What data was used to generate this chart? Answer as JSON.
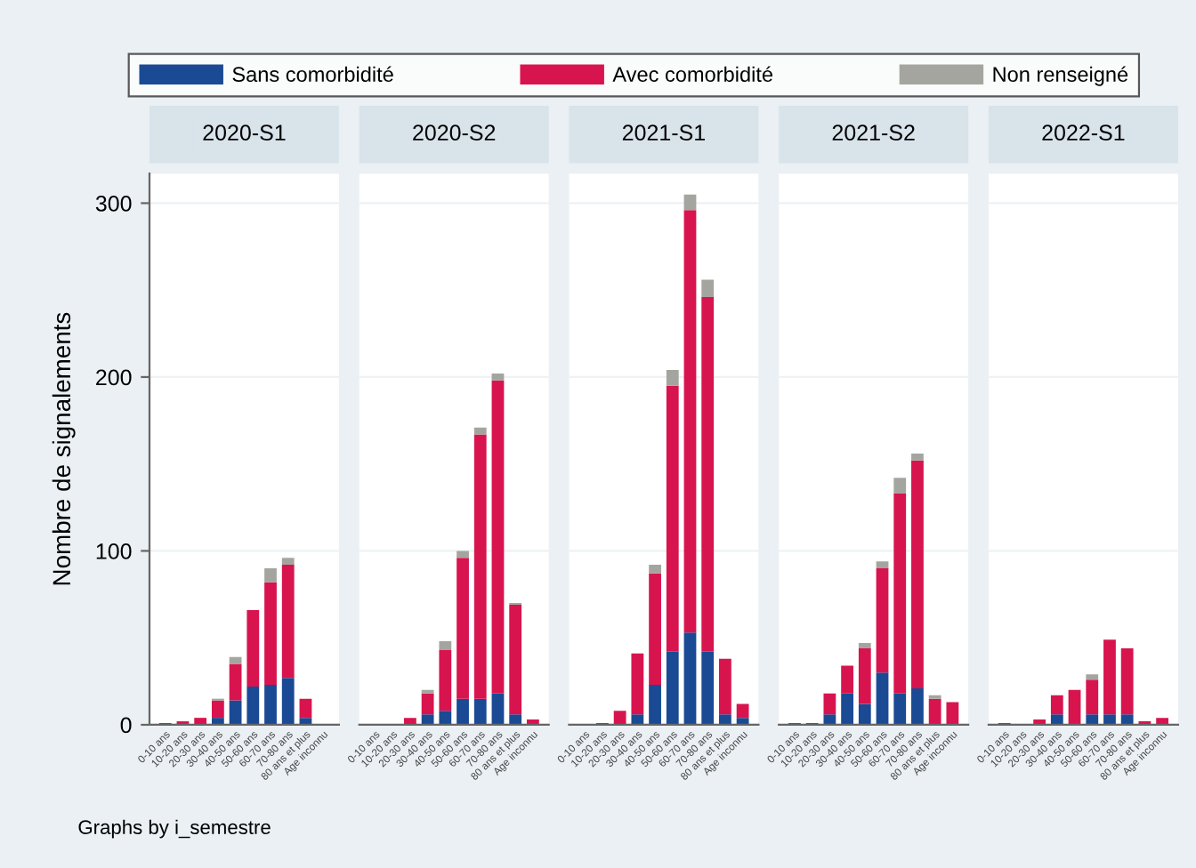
{
  "chart_data": [
    {
      "type": "bar",
      "stacked": true,
      "title": "2020-S1",
      "ylabel": "Nombre de signalements",
      "legend": "top",
      "grid": "y",
      "annotations": [
        "Graphs by i_semestre"
      ],
      "categories": [
        "0-10 ans",
        "10-20 ans",
        "20-30 ans",
        "30-40 ans",
        "40-50 ans",
        "50-60 ans",
        "60-70 ans",
        "70-80 ans",
        "80 ans et plus",
        "Age inconnu"
      ],
      "ylim": [
        0,
        317
      ],
      "yticks": [
        0,
        100,
        200,
        300
      ],
      "series": [
        {
          "name": "Sans comorbidité",
          "color": "#1a4a94",
          "values": [
            0,
            0,
            0,
            4,
            14,
            22,
            23,
            27,
            4,
            0
          ]
        },
        {
          "name": "Avec comorbidité",
          "color": "#d8144f",
          "values": [
            1,
            2,
            4,
            10,
            21,
            44,
            59,
            65,
            11,
            0
          ]
        },
        {
          "name": "Non renseigné",
          "color": "#a5a5a0",
          "values": [
            0,
            0,
            0,
            1,
            4,
            0,
            8,
            4,
            0,
            0
          ]
        }
      ]
    },
    {
      "type": "bar",
      "stacked": true,
      "title": "2020-S2",
      "grid": "y",
      "tick_labels": "x",
      "categories": [
        "0-10 ans",
        "10-20 ans",
        "20-30 ans",
        "30-40 ans",
        "40-50 ans",
        "50-60 ans",
        "60-70 ans",
        "70-80 ans",
        "80 ans et plus",
        "Age inconnu"
      ],
      "ylim": [
        0,
        317
      ],
      "yticks": [
        0,
        100,
        200,
        300
      ],
      "series": [
        {
          "color": "#1a4a94",
          "values": [
            0,
            0,
            0,
            6,
            8,
            15,
            15,
            18,
            6,
            0
          ]
        },
        {
          "color": "#d8144f",
          "values": [
            0,
            0,
            4,
            12,
            35,
            81,
            152,
            180,
            63,
            3
          ]
        },
        {
          "color": "#a5a5a0",
          "values": [
            0,
            0,
            0,
            2,
            5,
            4,
            4,
            4,
            1,
            0
          ]
        }
      ]
    },
    {
      "type": "bar",
      "stacked": true,
      "title": "2021-S1",
      "grid": "y",
      "tick_labels": "x",
      "categories": [
        "0-10 ans",
        "10-20 ans",
        "20-30 ans",
        "30-40 ans",
        "40-50 ans",
        "50-60 ans",
        "60-70 ans",
        "70-80 ans",
        "80 ans et plus",
        "Age inconnu"
      ],
      "ylim": [
        0,
        317
      ],
      "yticks": [
        0,
        100,
        200,
        300
      ],
      "series": [
        {
          "color": "#1a4a94",
          "values": [
            0,
            0,
            0,
            6,
            23,
            42,
            53,
            42,
            6,
            4
          ]
        },
        {
          "color": "#d8144f",
          "values": [
            0,
            1,
            8,
            35,
            64,
            153,
            243,
            204,
            32,
            8
          ]
        },
        {
          "color": "#a5a5a0",
          "values": [
            0,
            0,
            0,
            0,
            5,
            9,
            9,
            10,
            0,
            0
          ]
        }
      ]
    },
    {
      "type": "bar",
      "stacked": true,
      "title": "2021-S2",
      "grid": "y",
      "tick_labels": "x",
      "categories": [
        "0-10 ans",
        "10-20 ans",
        "20-30 ans",
        "30-40 ans",
        "40-50 ans",
        "50-60 ans",
        "60-70 ans",
        "70-80 ans",
        "80 ans et plus",
        "Age inconnu"
      ],
      "ylim": [
        0,
        317
      ],
      "yticks": [
        0,
        100,
        200,
        300
      ],
      "series": [
        {
          "color": "#1a4a94",
          "values": [
            0,
            0,
            6,
            18,
            12,
            30,
            18,
            21,
            0,
            0
          ]
        },
        {
          "color": "#d8144f",
          "values": [
            1,
            1,
            12,
            16,
            32,
            60,
            115,
            131,
            15,
            13
          ]
        },
        {
          "color": "#a5a5a0",
          "values": [
            0,
            0,
            0,
            0,
            3,
            4,
            9,
            4,
            2,
            0
          ]
        }
      ]
    },
    {
      "type": "bar",
      "stacked": true,
      "title": "2022-S1",
      "grid": "y",
      "tick_labels": "x",
      "categories": [
        "0-10 ans",
        "10-20 ans",
        "20-30 ans",
        "30-40 ans",
        "40-50 ans",
        "50-60 ans",
        "60-70 ans",
        "70-80 ans",
        "80 ans et plus",
        "Age inconnu"
      ],
      "ylim": [
        0,
        317
      ],
      "yticks": [
        0,
        100,
        200,
        300
      ],
      "series": [
        {
          "color": "#1a4a94",
          "values": [
            0,
            0,
            0,
            6,
            0,
            6,
            6,
            6,
            0,
            0
          ]
        },
        {
          "color": "#d8144f",
          "values": [
            1,
            null,
            3,
            11,
            20,
            20,
            43,
            38,
            2,
            4
          ]
        },
        {
          "color": "#a5a5a0",
          "values": [
            0,
            0,
            0,
            0,
            0,
            3,
            0,
            0,
            0,
            0
          ]
        }
      ]
    }
  ]
}
